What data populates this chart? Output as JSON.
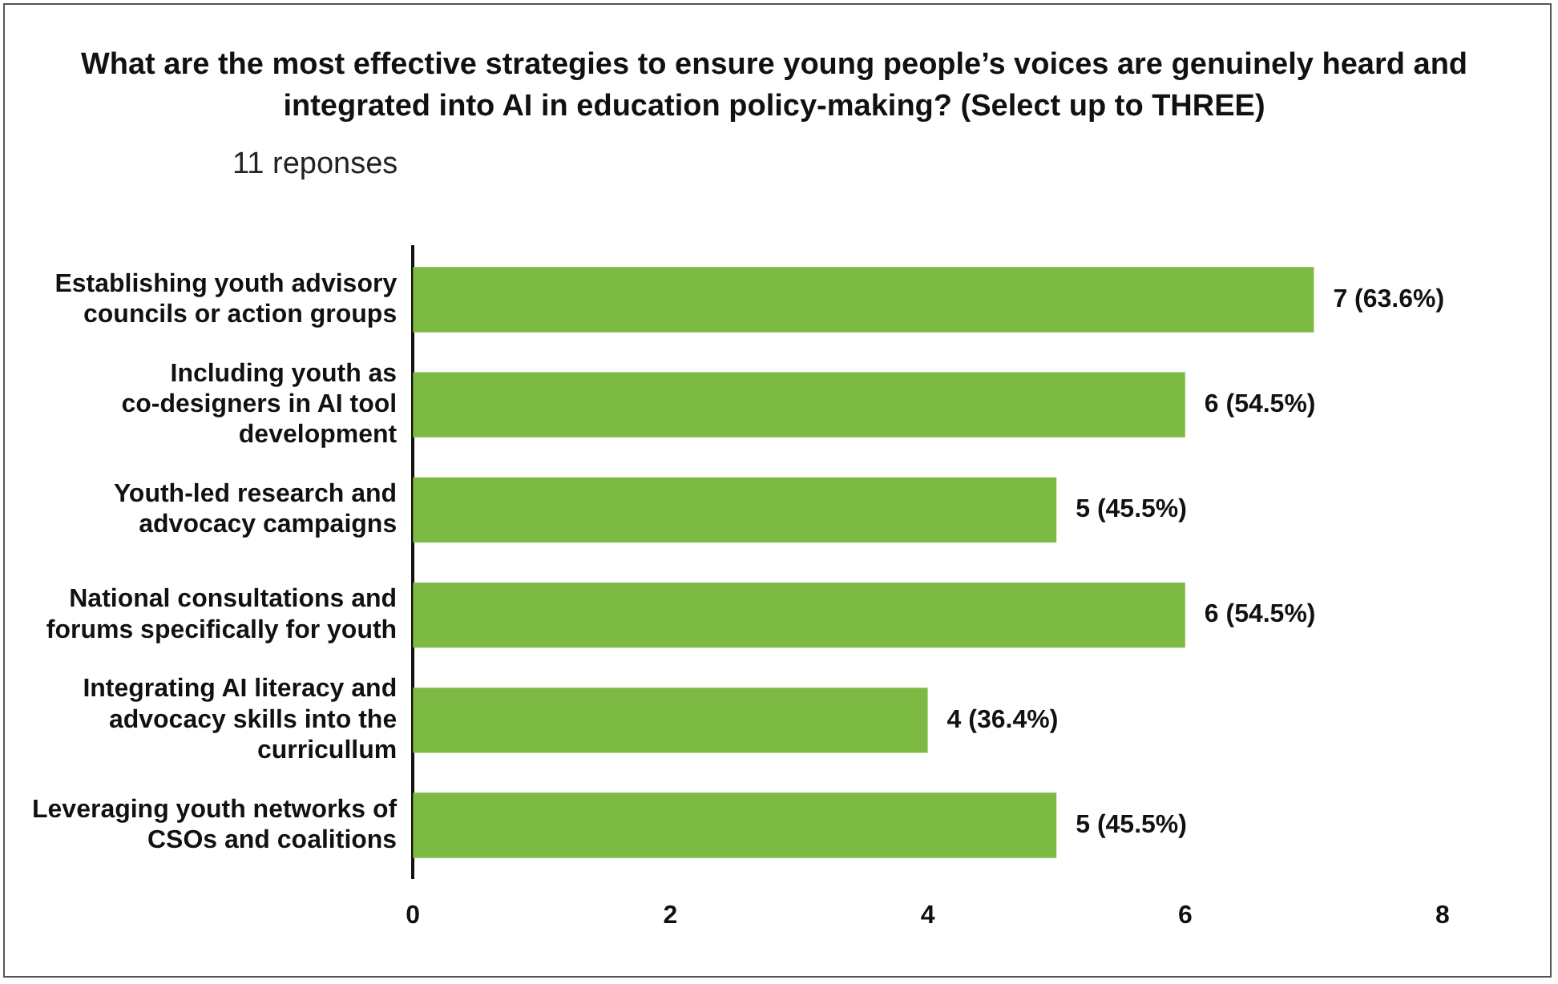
{
  "chart_data": {
    "type": "bar",
    "orientation": "horizontal",
    "title": "What are the most effective strategies to ensure young people’s voices are genuinely heard and integrated into AI in education policy-making? (Select up to THREE)",
    "subtitle": "11 reponses",
    "categories": [
      "Establishing youth advisory councils or action groups",
      "Including youth as co-designers in AI tool development",
      "Youth-led research and advocacy campaigns",
      "National consultations and forums specifically for youth",
      "Integrating AI literacy and advocacy skills into the curricullum",
      "Leveraging youth networks of CSOs and coalitions"
    ],
    "values": [
      7,
      6,
      5,
      6,
      4,
      5
    ],
    "value_labels": [
      "7 (63.6%)",
      "6 (54.5%)",
      "5 (45.5%)",
      "6 (54.5%)",
      "4 (36.4%)",
      "5 (45.5%)"
    ],
    "color": "#7dba43",
    "xlim": [
      0,
      8
    ],
    "xticks": [
      0,
      2,
      4,
      6,
      8
    ],
    "grid": false,
    "legend": false
  }
}
